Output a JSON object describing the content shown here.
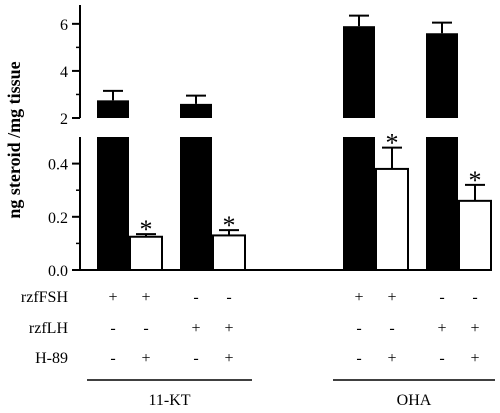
{
  "chart_data": {
    "type": "bar",
    "ylabel": "ng steroid /mg tissue",
    "axis_break": true,
    "lower_ylim": [
      0,
      0.5
    ],
    "lower_yticks": [
      "0.0",
      "0.2",
      "0.4"
    ],
    "upper_ylim": [
      2,
      6.8
    ],
    "upper_yticks": [
      "2",
      "4",
      "6"
    ],
    "groups": [
      "11-KT",
      "OHA"
    ],
    "bars": [
      {
        "group": "11-KT",
        "fill": "black",
        "value": 2.75,
        "error": 0.4,
        "significant": false
      },
      {
        "group": "11-KT",
        "fill": "white",
        "value": 0.125,
        "error": 0.01,
        "significant": true
      },
      {
        "group": "11-KT",
        "fill": "black",
        "value": 2.6,
        "error": 0.35,
        "significant": false
      },
      {
        "group": "11-KT",
        "fill": "white",
        "value": 0.13,
        "error": 0.02,
        "significant": true
      },
      {
        "group": "OHA",
        "fill": "black",
        "value": 5.9,
        "error": 0.45,
        "significant": false
      },
      {
        "group": "OHA",
        "fill": "white",
        "value": 0.38,
        "error": 0.08,
        "significant": true
      },
      {
        "group": "OHA",
        "fill": "black",
        "value": 5.6,
        "error": 0.45,
        "significant": false
      },
      {
        "group": "OHA",
        "fill": "white",
        "value": 0.26,
        "error": 0.06,
        "significant": true
      }
    ],
    "condition_rows": [
      {
        "label": "rzfFSH",
        "values": [
          "+",
          "+",
          "-",
          "-",
          "+",
          "+",
          "-",
          "-"
        ]
      },
      {
        "label": "rzfLH",
        "values": [
          "-",
          "-",
          "+",
          "+",
          "-",
          "-",
          "+",
          "+"
        ]
      },
      {
        "label": "H-89",
        "values": [
          "-",
          "+",
          "-",
          "+",
          "-",
          "+",
          "-",
          "+"
        ]
      }
    ],
    "significance_marker": "*",
    "colors": {
      "dark_bar": "#000000",
      "light_bar": "#ffffff",
      "axis": "#000000"
    }
  }
}
